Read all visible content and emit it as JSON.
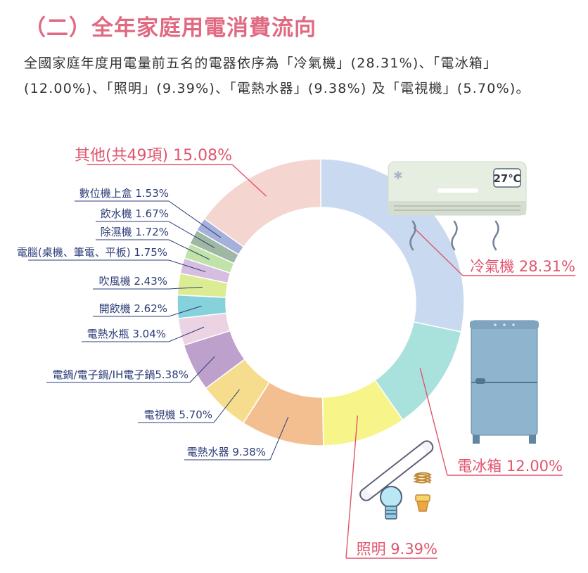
{
  "heading": "（二）全年家庭用電消費流向",
  "intro": "全國家庭年度用電量前五名的電器依序為「冷氣機」(28.31%)、「電冰箱」(12.00%)、「照明」(9.39%)、「電熱水器」(9.38%) 及「電視機」(5.70%)。",
  "chart_data": {
    "type": "pie",
    "donut": true,
    "slices": [
      {
        "name": "冷氣機",
        "value": 28.31,
        "label": "冷氣機 28.31%",
        "color": "#c9daf0",
        "emphasis": true
      },
      {
        "name": "電冰箱",
        "value": 12.0,
        "label": "電冰箱 12.00%",
        "color": "#a9e1dc",
        "emphasis": true
      },
      {
        "name": "照明",
        "value": 9.39,
        "label": "照明 9.39%",
        "color": "#f7f58a",
        "emphasis": true
      },
      {
        "name": "電熱水器",
        "value": 9.38,
        "label": "電熱水器 9.38%",
        "color": "#f3bf90",
        "emphasis": false
      },
      {
        "name": "電視機",
        "value": 5.7,
        "label": "電視機 5.70%",
        "color": "#f6dd8e",
        "emphasis": false
      },
      {
        "name": "電鍋/電子鍋/IH電子鍋",
        "value": 5.38,
        "label": "電鍋/電子鍋/IH電子鍋5.38%",
        "color": "#bea0cd",
        "emphasis": false
      },
      {
        "name": "電熱水瓶",
        "value": 3.04,
        "label": "電熱水瓶 3.04%",
        "color": "#ecd3e4",
        "emphasis": false
      },
      {
        "name": "開飲機",
        "value": 2.62,
        "label": "開飲機 2.62%",
        "color": "#85d2dc",
        "emphasis": false
      },
      {
        "name": "吹風機",
        "value": 2.43,
        "label": "吹風機 2.43%",
        "color": "#dcec92",
        "emphasis": false
      },
      {
        "name": "電腦(桌機、筆電、平板)",
        "value": 1.75,
        "label": "電腦(桌機、筆電、平板) 1.75%",
        "color": "#d6bee0",
        "emphasis": false
      },
      {
        "name": "除濕機",
        "value": 1.72,
        "label": "除濕機 1.72%",
        "color": "#bfe3a8",
        "emphasis": false
      },
      {
        "name": "飲水機",
        "value": 1.67,
        "label": "飲水機 1.67%",
        "color": "#9fb8a3",
        "emphasis": false
      },
      {
        "name": "數位機上盒",
        "value": 1.53,
        "label": "數位機上盒 1.53%",
        "color": "#a6b1db",
        "emphasis": false
      },
      {
        "name": "其他(共49項)",
        "value": 15.08,
        "label": "其他(共49項) 15.08%",
        "color": "#f5d5cf",
        "emphasis": true
      }
    ],
    "illustrations": [
      "air-conditioner",
      "refrigerator",
      "light-bulbs"
    ],
    "ac_display": "27℃"
  }
}
